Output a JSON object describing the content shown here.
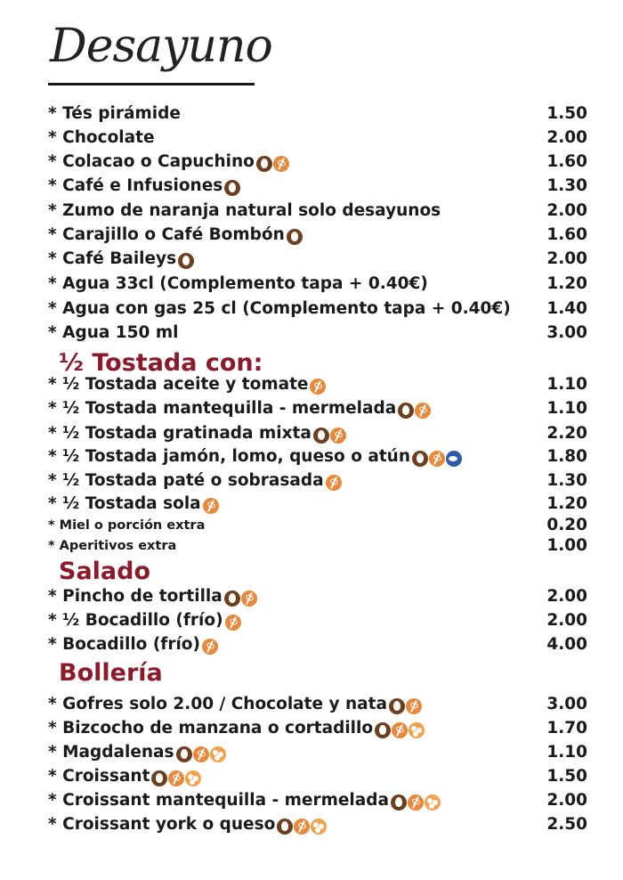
{
  "title": "Desayuno",
  "bullet": "*",
  "sections": {
    "tostada": "½ Tostada con:",
    "salado": "Salado",
    "bolleria": "Bollería"
  },
  "items": [
    {
      "name": "Tés pirámide",
      "price": "1.50",
      "icons": []
    },
    {
      "name": "Chocolate",
      "price": "2.00",
      "icons": []
    },
    {
      "name": "Colacao o Capuchino",
      "price": "1.60",
      "icons": [
        "egg",
        "gluten"
      ]
    },
    {
      "name": "Café e Infusiones",
      "price": "1.30",
      "icons": [
        "egg"
      ]
    },
    {
      "name": "Zumo de naranja natural solo desayunos",
      "price": "2.00",
      "icons": []
    },
    {
      "name": "Carajillo o Café Bombón",
      "price": "1.60",
      "icons": [
        "egg"
      ]
    },
    {
      "name": "Café Baileys",
      "price": "2.00",
      "icons": [
        "egg"
      ]
    },
    {
      "name": "Agua 33cl (Complemento tapa + 0.40€)",
      "price": "1.20",
      "icons": []
    },
    {
      "name": "Agua con gas 25 cl (Complemento tapa + 0.40€)",
      "price": "1.40",
      "icons": []
    },
    {
      "name": "Agua 150 ml",
      "price": "3.00",
      "icons": []
    },
    {
      "name": "½ Tostada aceite y tomate",
      "price": "1.10",
      "icons": [
        "gluten"
      ]
    },
    {
      "name": "½ Tostada mantequilla - mermelada",
      "price": "1.10",
      "icons": [
        "egg",
        "gluten"
      ]
    },
    {
      "name": "½ Tostada gratinada mixta",
      "price": "2.20",
      "icons": [
        "egg",
        "gluten"
      ]
    },
    {
      "name": "½ Tostada jamón, lomo, queso o atún",
      "price": "1.80",
      "icons": [
        "egg",
        "gluten",
        "fish"
      ]
    },
    {
      "name": "½ Tostada paté o sobrasada",
      "price": "1.30",
      "icons": [
        "gluten"
      ]
    },
    {
      "name": "½ Tostada sola",
      "price": "1.20",
      "icons": [
        "gluten"
      ]
    },
    {
      "name": "Miel o porción extra",
      "price": "0.20",
      "icons": []
    },
    {
      "name": "Aperitivos extra",
      "price": "1.00",
      "icons": []
    },
    {
      "name": "Pincho de tortilla",
      "price": "2.00",
      "icons": [
        "egg",
        "gluten"
      ]
    },
    {
      "name": "½ Bocadillo (frío)",
      "price": "2.00",
      "icons": [
        "gluten"
      ]
    },
    {
      "name": "Bocadillo (frío)",
      "price": "4.00",
      "icons": [
        "gluten"
      ]
    },
    {
      "name": "Gofres solo 2.00 / Chocolate y nata",
      "price": "3.00",
      "icons": [
        "egg",
        "gluten"
      ]
    },
    {
      "name": "Bizcocho de manzana o cortadillo",
      "price": "1.70",
      "icons": [
        "egg",
        "gluten",
        "nuts"
      ]
    },
    {
      "name": "Magdalenas",
      "price": "1.10",
      "icons": [
        "egg",
        "gluten",
        "nuts"
      ]
    },
    {
      "name": "Croissant",
      "price": "1.50",
      "icons": [
        "egg",
        "gluten",
        "nuts"
      ]
    },
    {
      "name": "Croissant mantequilla - mermelada",
      "price": "2.00",
      "icons": [
        "egg",
        "gluten",
        "nuts"
      ]
    },
    {
      "name": "Croissant york o queso",
      "price": "2.50",
      "icons": [
        "egg",
        "gluten",
        "nuts"
      ]
    }
  ]
}
